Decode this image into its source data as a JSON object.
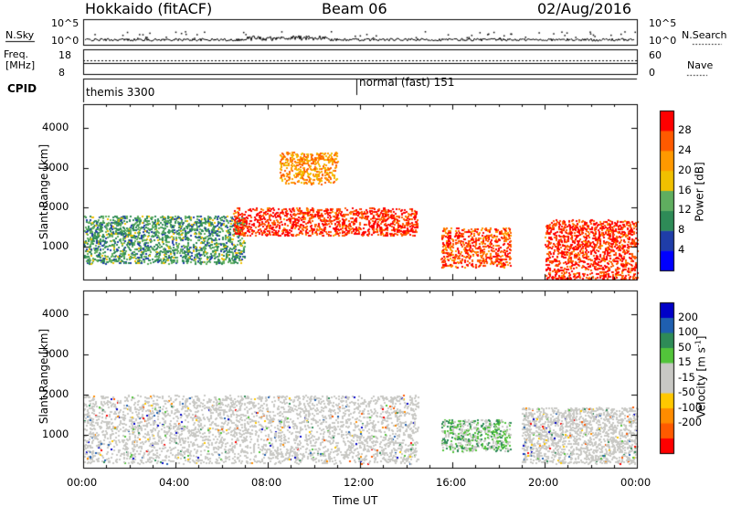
{
  "header": {
    "title": "Hokkaido (fitACF)",
    "beam": "Beam 06",
    "date": "02/Aug/2016"
  },
  "panels": {
    "nsky": {
      "label": "N.Sky",
      "right_label": "N.Search",
      "left_ticks": [
        "10^5",
        "10^0"
      ],
      "right_ticks": [
        "10^5",
        "10^0"
      ]
    },
    "freq": {
      "label_top": "Freq.",
      "label_unit": "[MHz]",
      "right_label": "Nave",
      "left_ticks": [
        "18",
        "8"
      ],
      "right_ticks": [
        "60",
        "0"
      ]
    },
    "cpid": {
      "label": "CPID",
      "segments": [
        "themis 3300",
        "normal (fast) 151"
      ]
    }
  },
  "colors": {
    "power_scale": [
      "#0000ff",
      "#1f3da8",
      "#2e8b57",
      "#5fae5f",
      "#f0c000",
      "#ff9900",
      "#ff5a00",
      "#ff0000"
    ],
    "velocity_scale": [
      "#0000c8",
      "#1f5fb0",
      "#2e8b57",
      "#52c43a",
      "#c8c8c4",
      "#c8c8c4",
      "#ffc800",
      "#ff8c00",
      "#ff5a00",
      "#ff0000"
    ],
    "ground_scatter": "#c8c8c4"
  },
  "chart_data": [
    {
      "type": "heatmap",
      "ylabel": "Slant Range [km]",
      "xlabel": "",
      "yticks": [
        1000,
        2000,
        3000,
        4000
      ],
      "ylim": [
        180,
        4600
      ],
      "xlim": [
        0,
        24
      ],
      "colorbar": {
        "label": "Power [dB]",
        "ticks": [
          "28",
          "24",
          "20",
          "16",
          "12",
          "8",
          "4"
        ],
        "range": [
          0,
          30
        ]
      },
      "regions": [
        {
          "t": [
            0,
            7
          ],
          "r": [
            600,
            1800
          ],
          "level": 11
        },
        {
          "t": [
            6.5,
            14.5
          ],
          "r": [
            1300,
            2000
          ],
          "level": 27
        },
        {
          "t": [
            8.5,
            11
          ],
          "r": [
            2600,
            3400
          ],
          "level": 21
        },
        {
          "t": [
            15.5,
            18.5
          ],
          "r": [
            500,
            1500
          ],
          "level": 25
        },
        {
          "t": [
            20,
            24
          ],
          "r": [
            200,
            1700
          ],
          "level": 27
        }
      ]
    },
    {
      "type": "heatmap",
      "ylabel": "Slant Range [km]",
      "xlabel": "Time UT",
      "yticks": [
        1000,
        2000,
        3000,
        4000
      ],
      "ylim": [
        180,
        4600
      ],
      "xlim": [
        0,
        24
      ],
      "xticks": [
        "00:00",
        "04:00",
        "08:00",
        "12:00",
        "16:00",
        "20:00",
        "00:00"
      ],
      "colorbar": {
        "label": "Velocity [m s^-1]",
        "ticks": [
          "200",
          "100",
          "50",
          "15",
          "-15",
          "-50",
          "-100",
          "-200"
        ],
        "range": [
          -250,
          250
        ]
      },
      "regions": [
        {
          "t": [
            0,
            14.5
          ],
          "r": [
            300,
            2000
          ],
          "velocity": 0,
          "ground_scatter": true
        },
        {
          "t": [
            15.5,
            18.5
          ],
          "r": [
            600,
            1400
          ],
          "velocity": 60
        },
        {
          "t": [
            19,
            24
          ],
          "r": [
            300,
            1700
          ],
          "velocity": 0,
          "ground_scatter": true
        }
      ]
    }
  ]
}
